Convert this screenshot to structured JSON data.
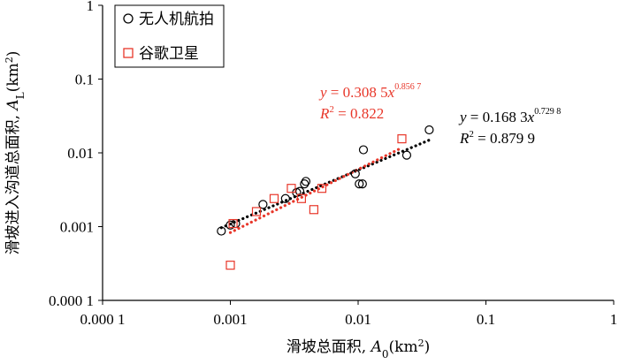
{
  "chart_data": {
    "type": "scatter",
    "x_scale": "log",
    "y_scale": "log",
    "xlim": [
      0.0001,
      1
    ],
    "ylim": [
      0.0001,
      1
    ],
    "xlabel": "滑坡总面积, A0(km²)",
    "ylabel": "滑坡进入沟道总面积, AL(km²)",
    "x_ticks": [
      "0.000 1",
      "0.001",
      "0.01",
      "0.1",
      "1"
    ],
    "y_ticks": [
      "0.000 1",
      "0.001",
      "0.01",
      "0.1",
      "1"
    ],
    "legend_position": "top-left",
    "series": [
      {
        "name": "无人机航拍",
        "marker": "circle",
        "color": "#000000",
        "points": [
          [
            0.00085,
            0.00087
          ],
          [
            0.001,
            0.00105
          ],
          [
            0.0011,
            0.0011
          ],
          [
            0.0018,
            0.002
          ],
          [
            0.0027,
            0.0024
          ],
          [
            0.0033,
            0.0029
          ],
          [
            0.0035,
            0.003
          ],
          [
            0.0038,
            0.0038
          ],
          [
            0.0039,
            0.0041
          ],
          [
            0.0095,
            0.0052
          ],
          [
            0.0102,
            0.0038
          ],
          [
            0.0108,
            0.0038
          ],
          [
            0.011,
            0.011
          ],
          [
            0.024,
            0.0093
          ],
          [
            0.036,
            0.0205
          ]
        ],
        "fit": {
          "a": 0.1683,
          "b": 0.7298,
          "r2": 0.8799,
          "x_range": [
            0.00085,
            0.036
          ],
          "color": "#000000",
          "equation_label": "y = 0.168 3x",
          "exponent_label": "0.729 8",
          "r2_label": "R² = 0.879 9"
        }
      },
      {
        "name": "谷歌卫星",
        "marker": "square",
        "color": "#e8372a",
        "points": [
          [
            0.001,
            0.0003
          ],
          [
            0.00105,
            0.0011
          ],
          [
            0.0016,
            0.0016
          ],
          [
            0.0022,
            0.0024
          ],
          [
            0.003,
            0.0033
          ],
          [
            0.0036,
            0.0024
          ],
          [
            0.0045,
            0.0017
          ],
          [
            0.0052,
            0.0033
          ],
          [
            0.022,
            0.0155
          ]
        ],
        "fit": {
          "a": 0.3085,
          "b": 0.8567,
          "r2": 0.822,
          "x_range": [
            0.001,
            0.022
          ],
          "color": "#e8372a",
          "equation_label": "y = 0.308 5x",
          "exponent_label": "0.856 7",
          "r2_label": "R² = 0.822"
        }
      }
    ]
  }
}
